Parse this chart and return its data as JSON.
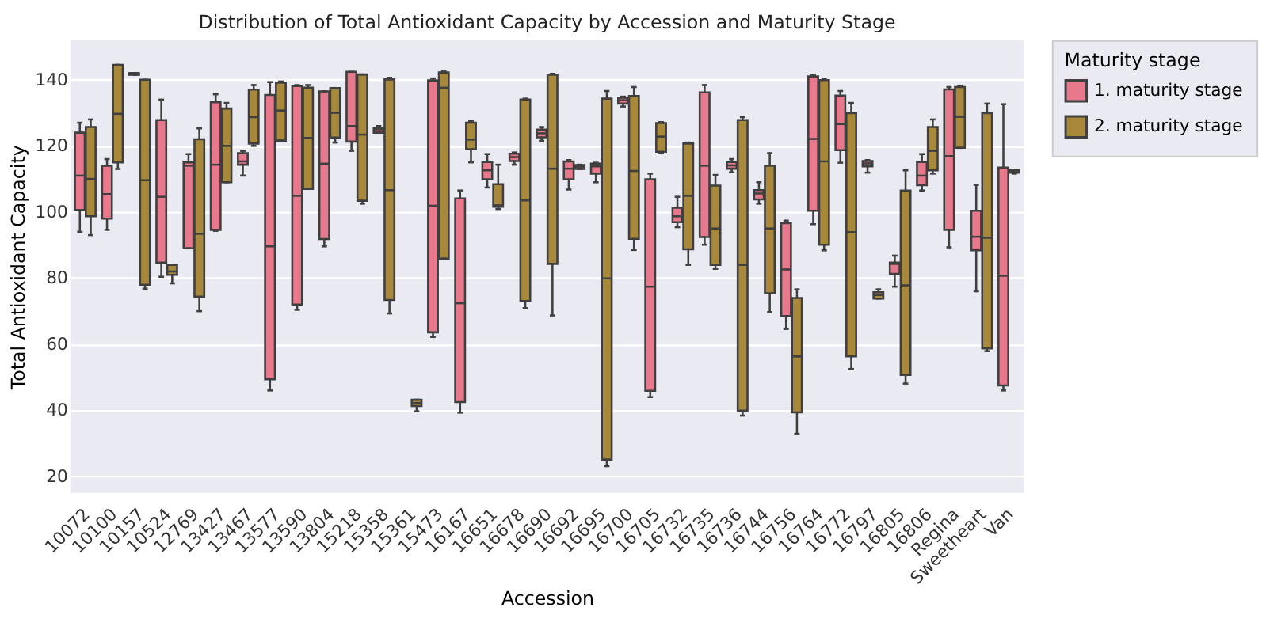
{
  "chart_data": {
    "type": "box",
    "title": "Distribution of Total Antioxidant Capacity by Accession and Maturity Stage",
    "xlabel": "Accession",
    "ylabel": "Total Antioxidant Capacity",
    "legend_title": "Maturity stage",
    "categories": [
      "10072",
      "10100",
      "10157",
      "10524",
      "12769",
      "13427",
      "13467",
      "13577",
      "13590",
      "13804",
      "15218",
      "15358",
      "15361",
      "15473",
      "16167",
      "16651",
      "16678",
      "16690",
      "16692",
      "16695",
      "16700",
      "16705",
      "16732",
      "16735",
      "16736",
      "16744",
      "16756",
      "16764",
      "16772",
      "16797",
      "16805",
      "16806",
      "Regina",
      "Sweetheart",
      "Van"
    ],
    "series": [
      {
        "name": "1. maturity stage",
        "color": "#e8798d",
        "boxes": [
          {
            "low": 94,
            "q1": 100.6,
            "median": 111,
            "q3": 124,
            "high": 127
          },
          {
            "low": 94.6,
            "q1": 98,
            "median": 105.4,
            "q3": 114,
            "high": 116
          },
          {
            "low": 141.5,
            "q1": 141.5,
            "median": 142,
            "q3": 142,
            "high": 142
          },
          {
            "low": 80.4,
            "q1": 84.7,
            "median": 104.6,
            "q3": 127.8,
            "high": 134
          },
          {
            "low": 89,
            "q1": 89,
            "median": 114,
            "q3": 115,
            "high": 117.5
          },
          {
            "low": 94.3,
            "q1": 94.6,
            "median": 114.3,
            "q3": 133.2,
            "high": 135.6
          },
          {
            "low": 111,
            "q1": 114.3,
            "median": 115.3,
            "q3": 117.8,
            "high": 118.5
          },
          {
            "low": 46,
            "q1": 49.4,
            "median": 89.6,
            "q3": 135.4,
            "high": 139.3
          },
          {
            "low": 70.4,
            "q1": 72,
            "median": 104.9,
            "q3": 138.1,
            "high": 138.4
          },
          {
            "low": 89.6,
            "q1": 91.8,
            "median": 114.6,
            "q3": 136.5,
            "high": 136.5
          },
          {
            "low": 118.5,
            "q1": 121.3,
            "median": 126,
            "q3": 142.4,
            "high": 142.4
          },
          {
            "low": 124,
            "q1": 124,
            "median": 125,
            "q3": 125.5,
            "high": 126
          },
          null,
          {
            "low": 62.2,
            "q1": 63.6,
            "median": 101.9,
            "q3": 139.8,
            "high": 140.4
          },
          {
            "low": 39.3,
            "q1": 42.5,
            "median": 72.4,
            "q3": 104.1,
            "high": 106.5
          },
          {
            "low": 107.4,
            "q1": 109.9,
            "median": 112.6,
            "q3": 115.1,
            "high": 117.5
          },
          {
            "low": 114.3,
            "q1": 115.4,
            "median": 116.6,
            "q3": 117.6,
            "high": 118
          },
          {
            "low": 121.5,
            "q1": 122.6,
            "median": 123.8,
            "q3": 124.9,
            "high": 125.7
          },
          {
            "low": 106.8,
            "q1": 109.9,
            "median": 113.1,
            "q3": 115.3,
            "high": 115.7
          },
          {
            "low": 109,
            "q1": 111.6,
            "median": 113.8,
            "q3": 114.6,
            "high": 114.9
          },
          {
            "low": 131.9,
            "q1": 132.8,
            "median": 133.8,
            "q3": 134.6,
            "high": 134.9
          },
          {
            "low": 44,
            "q1": 45.9,
            "median": 77.4,
            "q3": 109.9,
            "high": 111.6
          },
          {
            "low": 95.4,
            "q1": 96.9,
            "median": 98.7,
            "q3": 101.3,
            "high": 104.6
          },
          {
            "low": 90.1,
            "q1": 92.4,
            "median": 114,
            "q3": 136.2,
            "high": 138.4
          },
          {
            "low": 112,
            "q1": 113.1,
            "median": 114.1,
            "q3": 115.1,
            "high": 116
          },
          {
            "low": 102.5,
            "q1": 103.8,
            "median": 105.6,
            "q3": 106.6,
            "high": 109
          },
          {
            "low": 64.6,
            "q1": 68.5,
            "median": 82.6,
            "q3": 96.6,
            "high": 97.4
          },
          {
            "low": 96.3,
            "q1": 100.4,
            "median": 122.1,
            "q3": 141,
            "high": 141.5
          },
          {
            "low": 114.9,
            "q1": 118.7,
            "median": 126.6,
            "q3": 135.2,
            "high": 136.6
          },
          {
            "low": 111.9,
            "q1": 113.8,
            "median": 114.7,
            "q3": 115.4,
            "high": 115.7
          },
          {
            "low": 77.4,
            "q1": 81.3,
            "median": 84.3,
            "q3": 84.7,
            "high": 86.8
          },
          {
            "low": 106.5,
            "q1": 108.1,
            "median": 111,
            "q3": 115.1,
            "high": 117.5
          },
          {
            "low": 89.3,
            "q1": 94.6,
            "median": 116.9,
            "q3": 137.1,
            "high": 137.8
          },
          {
            "low": 76,
            "q1": 88.4,
            "median": 92.5,
            "q3": 100.4,
            "high": 108.2
          },
          {
            "low": 46,
            "q1": 47.5,
            "median": 80.7,
            "q3": 113.4,
            "high": 132.6
          }
        ]
      },
      {
        "name": "2. maturity stage",
        "color": "#a8883a",
        "boxes": [
          {
            "low": 93,
            "q1": 98.7,
            "median": 110,
            "q3": 125.7,
            "high": 128
          },
          {
            "low": 113,
            "q1": 115,
            "median": 129.7,
            "q3": 144.5,
            "high": 144.5
          },
          {
            "low": 76.8,
            "q1": 78,
            "median": 109.6,
            "q3": 140,
            "high": 140
          },
          {
            "low": 78.4,
            "q1": 81,
            "median": 82,
            "q3": 84,
            "high": 84
          },
          {
            "low": 70,
            "q1": 74.4,
            "median": 93.4,
            "q3": 122,
            "high": 125.3
          },
          {
            "low": 109,
            "q1": 109,
            "median": 120,
            "q3": 131.3,
            "high": 133
          },
          {
            "low": 120,
            "q1": 120.7,
            "median": 128.7,
            "q3": 137,
            "high": 138.4
          },
          {
            "low": 121.6,
            "q1": 121.6,
            "median": 130.7,
            "q3": 139.1,
            "high": 139.5
          },
          {
            "low": 107,
            "q1": 107,
            "median": 122.4,
            "q3": 137.6,
            "high": 138.4
          },
          {
            "low": 121,
            "q1": 122.5,
            "median": 130,
            "q3": 137.5,
            "high": 137.5
          },
          {
            "low": 102.5,
            "q1": 103.4,
            "median": 123.4,
            "q3": 141.6,
            "high": 141.6
          },
          {
            "low": 69.3,
            "q1": 73.4,
            "median": 106.6,
            "q3": 140.1,
            "high": 140.6
          },
          {
            "low": 39.7,
            "q1": 41.3,
            "median": 42.2,
            "q3": 43.2,
            "high": 43.2
          },
          {
            "low": 85.9,
            "q1": 85.9,
            "median": 137.6,
            "q3": 142.2,
            "high": 142.5
          },
          {
            "low": 115,
            "q1": 119,
            "median": 121.9,
            "q3": 127,
            "high": 127.5
          },
          {
            "low": 100.9,
            "q1": 101.6,
            "median": 102,
            "q3": 108.4,
            "high": 114.3
          },
          {
            "low": 70.9,
            "q1": 73.1,
            "median": 103.5,
            "q3": 134,
            "high": 134.3
          },
          {
            "low": 68.7,
            "q1": 84.3,
            "median": 113.1,
            "q3": 141.5,
            "high": 141.8
          },
          {
            "low": 113,
            "q1": 113,
            "median": 113.7,
            "q3": 114.2,
            "high": 114.3
          },
          {
            "low": 23.1,
            "q1": 25.1,
            "median": 79.9,
            "q3": 134.3,
            "high": 136.6
          },
          {
            "low": 88.5,
            "q1": 91.9,
            "median": 112.4,
            "q3": 135.1,
            "high": 137.8
          },
          {
            "low": 117.9,
            "q1": 118.2,
            "median": 122.8,
            "q3": 126.9,
            "high": 127.2
          },
          {
            "low": 84,
            "q1": 88.7,
            "median": 104.9,
            "q3": 120.7,
            "high": 121
          },
          {
            "low": 82.8,
            "q1": 84,
            "median": 95,
            "q3": 108,
            "high": 111.2
          },
          {
            "low": 38.4,
            "q1": 39.9,
            "median": 84,
            "q3": 127.8,
            "high": 128.7
          },
          {
            "low": 69.7,
            "q1": 75.4,
            "median": 95,
            "q3": 114,
            "high": 117.8
          },
          {
            "low": 32.9,
            "q1": 39.4,
            "median": 56.3,
            "q3": 74,
            "high": 76.6
          },
          {
            "low": 88.4,
            "q1": 90.1,
            "median": 115.3,
            "q3": 139.9,
            "high": 140.3
          },
          {
            "low": 52.5,
            "q1": 56.3,
            "median": 93.9,
            "q3": 129.9,
            "high": 133
          },
          {
            "low": 73.8,
            "q1": 73.8,
            "median": 74.9,
            "q3": 75.7,
            "high": 76.6
          },
          {
            "low": 48.1,
            "q1": 50.7,
            "median": 77.8,
            "q3": 106.5,
            "high": 112.6
          },
          {
            "low": 111.6,
            "q1": 112.6,
            "median": 118.5,
            "q3": 125.7,
            "high": 128
          },
          {
            "low": 119.4,
            "q1": 119.4,
            "median": 128.8,
            "q3": 137.8,
            "high": 138.2
          },
          {
            "low": 57.9,
            "q1": 58.7,
            "median": 92.2,
            "q3": 129.9,
            "high": 132.8
          },
          {
            "low": 111.6,
            "q1": 111.9,
            "median": 112.4,
            "q3": 112.8,
            "high": 112.8
          }
        ]
      }
    ],
    "ylim": [
      15,
      152
    ],
    "yticks": [
      20,
      40,
      60,
      80,
      100,
      120,
      140
    ],
    "grid": "y",
    "legend": "top right"
  }
}
